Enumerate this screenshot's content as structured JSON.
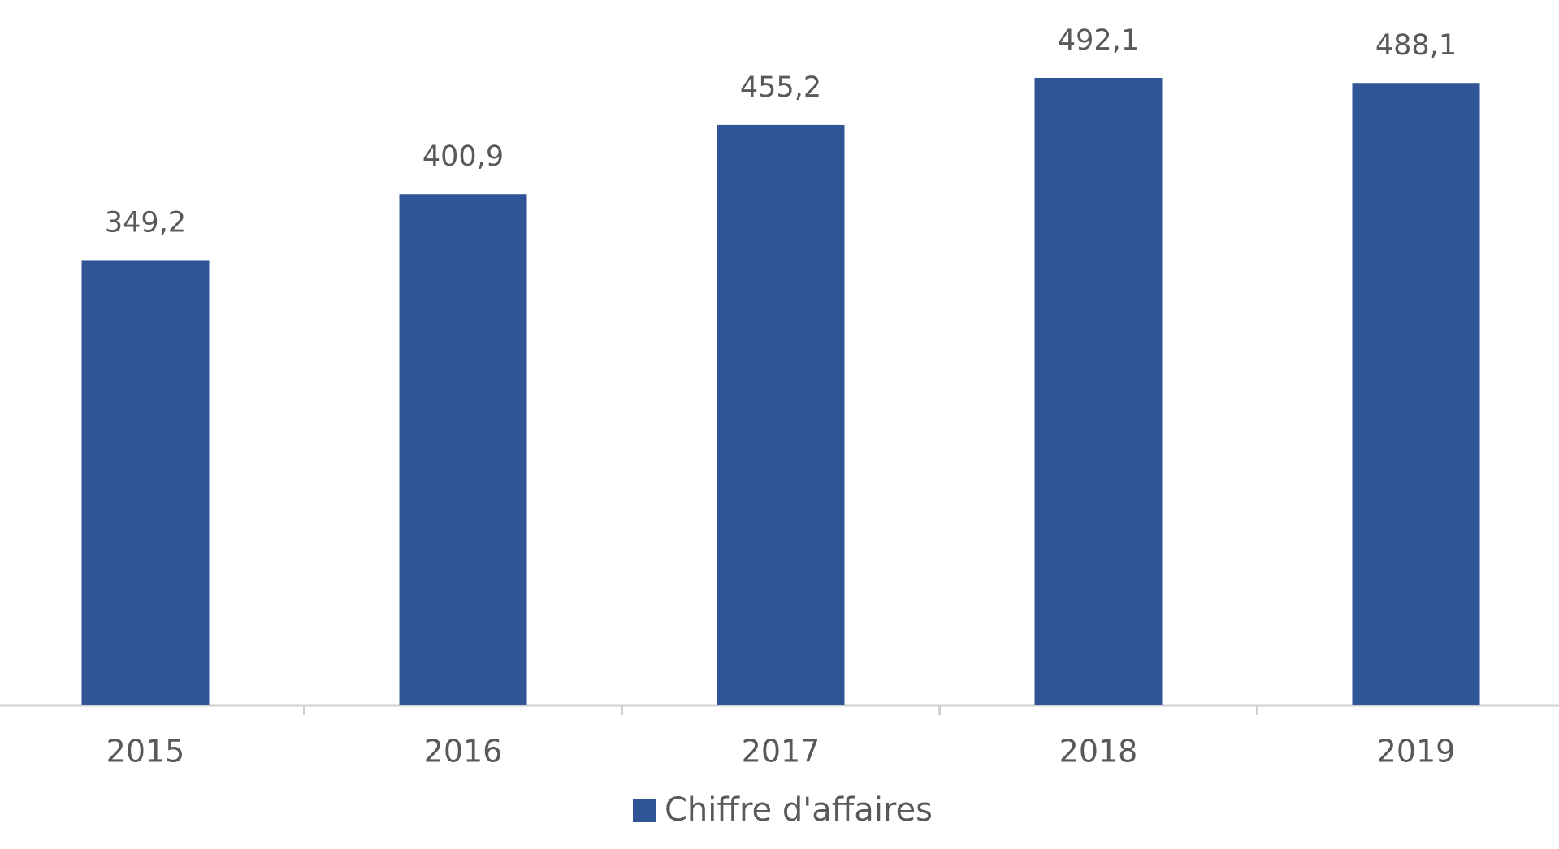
{
  "chart_data": {
    "type": "bar",
    "categories": [
      "2015",
      "2016",
      "2017",
      "2018",
      "2019"
    ],
    "series": [
      {
        "name": "Chiffre d'affaires",
        "color": "#2f5597",
        "values": [
          349.2,
          400.9,
          455.2,
          492.1,
          488.1
        ],
        "value_labels": [
          "349,2",
          "400,9",
          "455,2",
          "492,1",
          "488,1"
        ]
      }
    ],
    "ylim": [
      0,
      550
    ],
    "legend": "bottom"
  }
}
